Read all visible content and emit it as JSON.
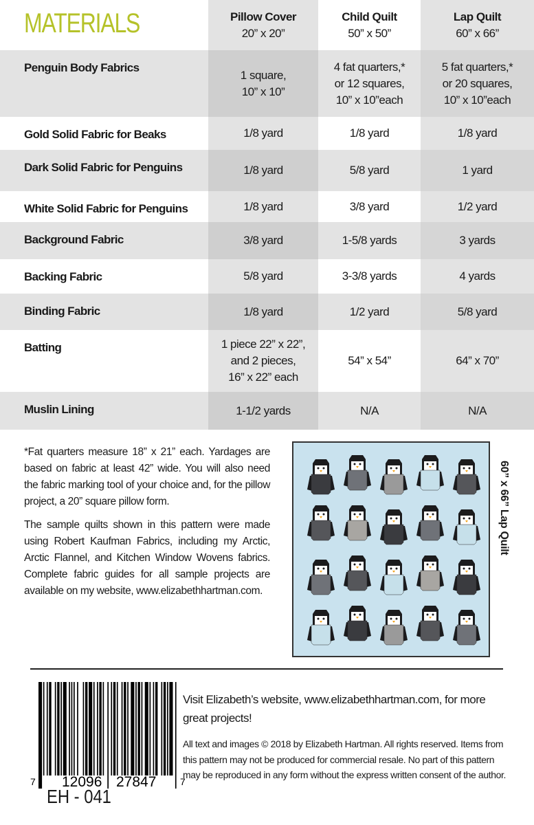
{
  "title": "MATERIALS",
  "columns": [
    {
      "name": "Pillow Cover",
      "size": "20” x 20”"
    },
    {
      "name": "Child Quilt",
      "size": "50” x 50”"
    },
    {
      "name": "Lap Quilt",
      "size": "60” x 66”"
    }
  ],
  "rows": [
    {
      "label": "Penguin Body Fabrics",
      "values": [
        [
          "1 square,",
          "10” x 10”"
        ],
        [
          "4 fat quarters,*",
          "or 12 squares,",
          "10” x 10”each"
        ],
        [
          "5 fat quarters,*",
          "or 20 squares,",
          "10” x 10”each"
        ]
      ]
    },
    {
      "label": "Gold Solid Fabric for Beaks",
      "values": [
        [
          "1/8 yard"
        ],
        [
          "1/8 yard"
        ],
        [
          "1/8 yard"
        ]
      ]
    },
    {
      "label": "Dark Solid Fabric for Penguins",
      "values": [
        [
          "1/8 yard"
        ],
        [
          "5/8 yard"
        ],
        [
          "1 yard"
        ]
      ]
    },
    {
      "label": "White Solid Fabric for Penguins",
      "values": [
        [
          "1/8 yard"
        ],
        [
          "3/8 yard"
        ],
        [
          "1/2 yard"
        ]
      ]
    },
    {
      "label": "Background Fabric",
      "values": [
        [
          "3/8 yard"
        ],
        [
          "1-5/8 yards"
        ],
        [
          "3 yards"
        ]
      ]
    },
    {
      "label": "Backing Fabric",
      "values": [
        [
          "5/8 yard"
        ],
        [
          "3-3/8 yards"
        ],
        [
          "4 yards"
        ]
      ]
    },
    {
      "label": "Binding Fabric",
      "values": [
        [
          "1/8 yard"
        ],
        [
          "1/2 yard"
        ],
        [
          "5/8 yard"
        ]
      ]
    },
    {
      "label": "Batting",
      "values": [
        [
          "1 piece 22” x 22”,",
          "and 2 pieces,",
          "16” x 22” each"
        ],
        [
          "54” x 54”"
        ],
        [
          "64” x 70”"
        ]
      ]
    },
    {
      "label": "Muslin Lining",
      "values": [
        [
          "1-1/2 yards"
        ],
        [
          "N/A"
        ],
        [
          "N/A"
        ]
      ]
    }
  ],
  "notes": [
    "*Fat quarters measure 18” x 21” each. Yardages are based on fabric at least 42” wide. You will also need the fabric marking tool of your choice and, for the pillow project, a 20” square pillow form.",
    "The sample quilts shown in this pattern were made using Robert Kaufman Fabrics, including my Arctic, Arctic Flannel, and Kitchen Window Wovens fabrics. Complete fabric guides for all sample projects are available on my website, www.elizabethhartman.com."
  ],
  "quilt_label": "60” x 66” Lap Quilt",
  "barcode": {
    "first": "7",
    "left": "12096",
    "right": "27847",
    "last": "7"
  },
  "pattern_code": "EH - 041",
  "visit": "Visit Elizabeth’s website, www.elizabethhartman.com, for more great projects!",
  "legal": "All text and images © 2018 by Elizabeth Hartman. All rights reserved. Items from this pattern may not be produced for commercial resale. No part of this pattern may be reproduced in any form without the express written consent of the author.",
  "colors": {
    "accent": "#b5c229",
    "quilt_background": "#c9e2ee",
    "penguin_dark": "#1b1b1d",
    "beak": "#f2a31b"
  }
}
